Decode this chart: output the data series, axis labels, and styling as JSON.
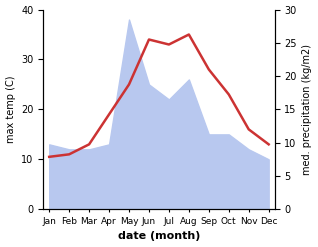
{
  "months": [
    "Jan",
    "Feb",
    "Mar",
    "Apr",
    "May",
    "Jun",
    "Jul",
    "Aug",
    "Sep",
    "Oct",
    "Nov",
    "Dec"
  ],
  "temp": [
    10.5,
    11.0,
    13.0,
    19.0,
    25.0,
    34.0,
    33.0,
    35.0,
    28.0,
    23.0,
    16.0,
    13.0
  ],
  "precip": [
    13.0,
    12.0,
    12.0,
    13.0,
    38.0,
    25.0,
    22.0,
    26.0,
    15.0,
    15.0,
    12.0,
    10.0
  ],
  "temp_color": "#cc3333",
  "precip_fill_color": "#b8c8ef",
  "temp_ylim": [
    0,
    40
  ],
  "precip_ylim": [
    0,
    30
  ],
  "temp_ylabel": "max temp (C)",
  "precip_ylabel": "med. precipitation (kg/m2)",
  "xlabel": "date (month)",
  "bg_color": "#ffffff",
  "temp_yticks": [
    0,
    10,
    20,
    30,
    40
  ],
  "precip_yticks": [
    0,
    5,
    10,
    15,
    20,
    25,
    30
  ]
}
